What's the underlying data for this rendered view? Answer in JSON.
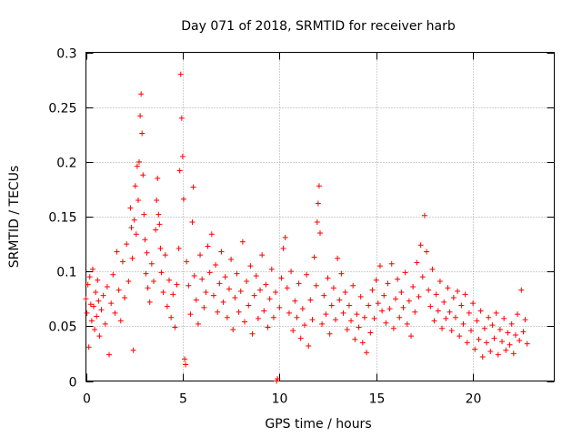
{
  "chart_data": {
    "type": "scatter",
    "title": "Day 071 of 2018, SRMTID for receiver harb",
    "xlabel": "GPS time / hours",
    "ylabel": "SRMTID / TECUs",
    "xlim": [
      0,
      24.2
    ],
    "ylim": [
      0,
      0.3
    ],
    "xticks": [
      0,
      5,
      10,
      15,
      20
    ],
    "yticks": [
      0,
      0.05,
      0.1,
      0.15,
      0.2,
      0.25,
      0.3
    ],
    "xtick_labels": [
      "0",
      "5",
      "10",
      "15",
      "20"
    ],
    "ytick_labels": [
      "0",
      "0.05",
      "0.1",
      "0.15",
      "0.2",
      "0.25",
      "0.3"
    ],
    "grid": true,
    "marker": "+",
    "series_color": "#ff0000",
    "points": [
      [
        0.0,
        0.075
      ],
      [
        0.05,
        0.062
      ],
      [
        0.1,
        0.088
      ],
      [
        0.15,
        0.031
      ],
      [
        0.2,
        0.095
      ],
      [
        0.25,
        0.07
      ],
      [
        0.3,
        0.055
      ],
      [
        0.35,
        0.102
      ],
      [
        0.4,
        0.068
      ],
      [
        0.45,
        0.047
      ],
      [
        0.5,
        0.081
      ],
      [
        0.55,
        0.059
      ],
      [
        0.6,
        0.092
      ],
      [
        0.65,
        0.073
      ],
      [
        0.7,
        0.041
      ],
      [
        0.8,
        0.065
      ],
      [
        0.9,
        0.078
      ],
      [
        1.0,
        0.052
      ],
      [
        1.1,
        0.086
      ],
      [
        1.2,
        0.024
      ],
      [
        1.3,
        0.071
      ],
      [
        1.4,
        0.097
      ],
      [
        1.5,
        0.062
      ],
      [
        1.6,
        0.118
      ],
      [
        1.7,
        0.083
      ],
      [
        1.8,
        0.055
      ],
      [
        1.9,
        0.109
      ],
      [
        2.0,
        0.076
      ],
      [
        2.1,
        0.125
      ],
      [
        2.2,
        0.091
      ],
      [
        2.3,
        0.158
      ],
      [
        2.35,
        0.14
      ],
      [
        2.4,
        0.112
      ],
      [
        2.45,
        0.028
      ],
      [
        2.5,
        0.147
      ],
      [
        2.55,
        0.178
      ],
      [
        2.6,
        0.134
      ],
      [
        2.65,
        0.196
      ],
      [
        2.7,
        0.165
      ],
      [
        2.75,
        0.2
      ],
      [
        2.8,
        0.242
      ],
      [
        2.85,
        0.262
      ],
      [
        2.9,
        0.226
      ],
      [
        2.95,
        0.188
      ],
      [
        3.0,
        0.152
      ],
      [
        3.05,
        0.129
      ],
      [
        3.1,
        0.098
      ],
      [
        3.15,
        0.117
      ],
      [
        3.2,
        0.085
      ],
      [
        3.3,
        0.072
      ],
      [
        3.4,
        0.107
      ],
      [
        3.5,
        0.091
      ],
      [
        3.6,
        0.138
      ],
      [
        3.65,
        0.165
      ],
      [
        3.7,
        0.185
      ],
      [
        3.75,
        0.152
      ],
      [
        3.8,
        0.143
      ],
      [
        3.85,
        0.121
      ],
      [
        3.9,
        0.099
      ],
      [
        4.0,
        0.081
      ],
      [
        4.1,
        0.115
      ],
      [
        4.2,
        0.068
      ],
      [
        4.3,
        0.092
      ],
      [
        4.4,
        0.058
      ],
      [
        4.5,
        0.079
      ],
      [
        4.6,
        0.049
      ],
      [
        4.7,
        0.088
      ],
      [
        4.8,
        0.121
      ],
      [
        4.85,
        0.192
      ],
      [
        4.9,
        0.28
      ],
      [
        4.95,
        0.24
      ],
      [
        5.0,
        0.205
      ],
      [
        5.05,
        0.166
      ],
      [
        5.1,
        0.02
      ],
      [
        5.15,
        0.015
      ],
      [
        5.2,
        0.109
      ],
      [
        5.3,
        0.087
      ],
      [
        5.4,
        0.061
      ],
      [
        5.5,
        0.145
      ],
      [
        5.55,
        0.177
      ],
      [
        5.6,
        0.096
      ],
      [
        5.7,
        0.074
      ],
      [
        5.8,
        0.052
      ],
      [
        5.9,
        0.115
      ],
      [
        6.0,
        0.093
      ],
      [
        6.1,
        0.067
      ],
      [
        6.2,
        0.081
      ],
      [
        6.3,
        0.123
      ],
      [
        6.4,
        0.099
      ],
      [
        6.5,
        0.134
      ],
      [
        6.6,
        0.078
      ],
      [
        6.7,
        0.106
      ],
      [
        6.8,
        0.063
      ],
      [
        6.9,
        0.089
      ],
      [
        7.0,
        0.118
      ],
      [
        7.1,
        0.072
      ],
      [
        7.2,
        0.095
      ],
      [
        7.3,
        0.058
      ],
      [
        7.4,
        0.084
      ],
      [
        7.5,
        0.111
      ],
      [
        7.6,
        0.047
      ],
      [
        7.7,
        0.076
      ],
      [
        7.8,
        0.098
      ],
      [
        7.9,
        0.063
      ],
      [
        8.0,
        0.082
      ],
      [
        8.1,
        0.127
      ],
      [
        8.2,
        0.054
      ],
      [
        8.3,
        0.091
      ],
      [
        8.4,
        0.069
      ],
      [
        8.5,
        0.105
      ],
      [
        8.6,
        0.043
      ],
      [
        8.7,
        0.078
      ],
      [
        8.8,
        0.096
      ],
      [
        8.9,
        0.057
      ],
      [
        9.0,
        0.083
      ],
      [
        9.1,
        0.115
      ],
      [
        9.2,
        0.064
      ],
      [
        9.3,
        0.088
      ],
      [
        9.4,
        0.049
      ],
      [
        9.5,
        0.075
      ],
      [
        9.6,
        0.102
      ],
      [
        9.7,
        0.058
      ],
      [
        9.8,
        0.081
      ],
      [
        9.85,
        0.0
      ],
      [
        9.9,
        0.002
      ],
      [
        10.0,
        0.067
      ],
      [
        10.1,
        0.094
      ],
      [
        10.2,
        0.121
      ],
      [
        10.3,
        0.131
      ],
      [
        10.4,
        0.085
      ],
      [
        10.5,
        0.062
      ],
      [
        10.6,
        0.1
      ],
      [
        10.7,
        0.046
      ],
      [
        10.8,
        0.073
      ],
      [
        10.9,
        0.058
      ],
      [
        11.0,
        0.089
      ],
      [
        11.1,
        0.039
      ],
      [
        11.2,
        0.066
      ],
      [
        11.3,
        0.051
      ],
      [
        11.4,
        0.097
      ],
      [
        11.5,
        0.032
      ],
      [
        11.6,
        0.074
      ],
      [
        11.7,
        0.056
      ],
      [
        11.8,
        0.113
      ],
      [
        11.9,
        0.087
      ],
      [
        11.95,
        0.145
      ],
      [
        12.0,
        0.162
      ],
      [
        12.05,
        0.178
      ],
      [
        12.1,
        0.135
      ],
      [
        12.2,
        0.052
      ],
      [
        12.3,
        0.078
      ],
      [
        12.4,
        0.061
      ],
      [
        12.5,
        0.094
      ],
      [
        12.6,
        0.043
      ],
      [
        12.7,
        0.069
      ],
      [
        12.8,
        0.085
      ],
      [
        12.9,
        0.056
      ],
      [
        13.0,
        0.112
      ],
      [
        13.1,
        0.074
      ],
      [
        13.2,
        0.098
      ],
      [
        13.3,
        0.062
      ],
      [
        13.4,
        0.081
      ],
      [
        13.5,
        0.047
      ],
      [
        13.6,
        0.069
      ],
      [
        13.7,
        0.055
      ],
      [
        13.8,
        0.087
      ],
      [
        13.9,
        0.038
      ],
      [
        14.0,
        0.061
      ],
      [
        14.1,
        0.049
      ],
      [
        14.2,
        0.077
      ],
      [
        14.3,
        0.035
      ],
      [
        14.4,
        0.058
      ],
      [
        14.5,
        0.026
      ],
      [
        14.6,
        0.069
      ],
      [
        14.7,
        0.044
      ],
      [
        14.8,
        0.083
      ],
      [
        14.9,
        0.057
      ],
      [
        15.0,
        0.092
      ],
      [
        15.1,
        0.071
      ],
      [
        15.2,
        0.105
      ],
      [
        15.3,
        0.064
      ],
      [
        15.4,
        0.078
      ],
      [
        15.5,
        0.053
      ],
      [
        15.6,
        0.089
      ],
      [
        15.7,
        0.066
      ],
      [
        15.8,
        0.107
      ],
      [
        15.9,
        0.048
      ],
      [
        16.0,
        0.075
      ],
      [
        16.1,
        0.093
      ],
      [
        16.2,
        0.058
      ],
      [
        16.3,
        0.081
      ],
      [
        16.4,
        0.067
      ],
      [
        16.5,
        0.099
      ],
      [
        16.6,
        0.052
      ],
      [
        16.7,
        0.073
      ],
      [
        16.8,
        0.041
      ],
      [
        16.9,
        0.086
      ],
      [
        17.0,
        0.063
      ],
      [
        17.1,
        0.108
      ],
      [
        17.2,
        0.077
      ],
      [
        17.3,
        0.124
      ],
      [
        17.4,
        0.095
      ],
      [
        17.5,
        0.151
      ],
      [
        17.6,
        0.118
      ],
      [
        17.7,
        0.083
      ],
      [
        17.8,
        0.068
      ],
      [
        17.9,
        0.102
      ],
      [
        18.0,
        0.055
      ],
      [
        18.1,
        0.079
      ],
      [
        18.2,
        0.064
      ],
      [
        18.3,
        0.091
      ],
      [
        18.4,
        0.048
      ],
      [
        18.5,
        0.072
      ],
      [
        18.6,
        0.057
      ],
      [
        18.7,
        0.085
      ],
      [
        18.8,
        0.063
      ],
      [
        18.9,
        0.046
      ],
      [
        19.0,
        0.076
      ],
      [
        19.1,
        0.058
      ],
      [
        19.2,
        0.082
      ],
      [
        19.3,
        0.041
      ],
      [
        19.4,
        0.069
      ],
      [
        19.5,
        0.052
      ],
      [
        19.6,
        0.079
      ],
      [
        19.7,
        0.035
      ],
      [
        19.8,
        0.062
      ],
      [
        19.9,
        0.046
      ],
      [
        20.0,
        0.071
      ],
      [
        20.1,
        0.029
      ],
      [
        20.2,
        0.055
      ],
      [
        20.3,
        0.038
      ],
      [
        20.4,
        0.064
      ],
      [
        20.5,
        0.022
      ],
      [
        20.6,
        0.048
      ],
      [
        20.7,
        0.035
      ],
      [
        20.8,
        0.058
      ],
      [
        20.9,
        0.027
      ],
      [
        21.0,
        0.051
      ],
      [
        21.1,
        0.039
      ],
      [
        21.2,
        0.062
      ],
      [
        21.3,
        0.024
      ],
      [
        21.4,
        0.047
      ],
      [
        21.5,
        0.036
      ],
      [
        21.6,
        0.057
      ],
      [
        21.7,
        0.028
      ],
      [
        21.8,
        0.044
      ],
      [
        21.9,
        0.033
      ],
      [
        22.0,
        0.052
      ],
      [
        22.1,
        0.025
      ],
      [
        22.2,
        0.042
      ],
      [
        22.3,
        0.061
      ],
      [
        22.4,
        0.037
      ],
      [
        22.5,
        0.083
      ],
      [
        22.6,
        0.045
      ],
      [
        22.7,
        0.056
      ],
      [
        22.8,
        0.034
      ]
    ]
  }
}
